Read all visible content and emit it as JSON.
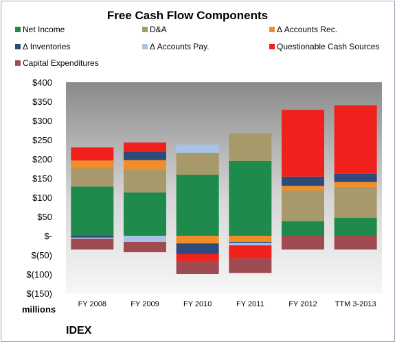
{
  "chart_data": {
    "type": "bar",
    "stacked": true,
    "title": "Free Cash Flow Components",
    "unit_label": "millions",
    "company": "IDEX",
    "categories": [
      "FY 2008",
      "FY 2009",
      "FY 2010",
      "FY 2011",
      "FY 2012",
      "TTM 3-2013"
    ],
    "ylim": [
      -150,
      400
    ],
    "yticks": [
      {
        "value": 400,
        "label": "$400"
      },
      {
        "value": 350,
        "label": "$350"
      },
      {
        "value": 300,
        "label": "$300"
      },
      {
        "value": 250,
        "label": "$250"
      },
      {
        "value": 200,
        "label": "$200"
      },
      {
        "value": 150,
        "label": "$150"
      },
      {
        "value": 100,
        "label": "$100"
      },
      {
        "value": 50,
        "label": "$50"
      },
      {
        "value": 0,
        "label": "$-"
      },
      {
        "value": -50,
        "label": "$(50)"
      },
      {
        "value": -100,
        "label": "$(100)"
      },
      {
        "value": -150,
        "label": "$(150)"
      }
    ],
    "legend_placement": "top",
    "series": [
      {
        "name": "Net Income",
        "color": "#1e8a4c",
        "values": [
          128,
          113,
          159,
          195,
          38,
          47
        ]
      },
      {
        "name": "D&A",
        "color": "#a8996a",
        "values": [
          48,
          59,
          57,
          72,
          80,
          80
        ]
      },
      {
        "name": "Δ Accounts Rec.",
        "color": "#f28c28",
        "values": [
          20,
          25,
          -20,
          -16,
          12,
          13
        ]
      },
      {
        "name": "Δ Inventories",
        "color": "#2e4a78",
        "values": [
          -5,
          22,
          -28,
          -3,
          24,
          21
        ]
      },
      {
        "name": "Δ Accounts Pay.",
        "color": "#a9c3e6",
        "values": [
          -3,
          -16,
          22,
          -6,
          0,
          0
        ]
      },
      {
        "name": "Questionable Cash Sources",
        "color": "#f0211c",
        "values": [
          34,
          24,
          -18,
          -34,
          174,
          179
        ]
      },
      {
        "name": "Capital Expenditures",
        "color": "#a04a52",
        "values": [
          -28,
          -27,
          -34,
          -38,
          -36,
          -36
        ]
      }
    ]
  }
}
